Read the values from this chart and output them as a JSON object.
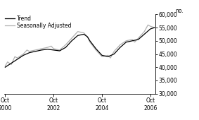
{
  "title": "",
  "ylabel": "no.",
  "ylim": [
    30000,
    60000
  ],
  "yticks": [
    30000,
    35000,
    40000,
    45000,
    50000,
    55000,
    60000
  ],
  "xlim_start": 2000.7,
  "xlim_end": 2006.95,
  "xtick_positions": [
    2000.75,
    2002.75,
    2004.75,
    2006.75
  ],
  "xtick_labels_top": [
    "Oct",
    "Oct",
    "Oct",
    "Oct"
  ],
  "xtick_labels_bot": [
    "2000",
    "2002",
    "2004",
    "2006"
  ],
  "legend_entries": [
    "Trend",
    "Seasonally Adjusted"
  ],
  "trend_color": "#000000",
  "seasonal_color": "#b0b0b0",
  "trend_linewidth": 0.9,
  "seasonal_linewidth": 0.9,
  "background_color": "#ffffff",
  "trend_data": [
    [
      2000.75,
      40000
    ],
    [
      2001.0,
      41500
    ],
    [
      2001.25,
      43000
    ],
    [
      2001.5,
      44500
    ],
    [
      2001.75,
      45500
    ],
    [
      2002.0,
      46000
    ],
    [
      2002.25,
      46500
    ],
    [
      2002.5,
      46800
    ],
    [
      2002.75,
      46500
    ],
    [
      2003.0,
      46200
    ],
    [
      2003.25,
      47500
    ],
    [
      2003.5,
      50000
    ],
    [
      2003.75,
      52000
    ],
    [
      2004.0,
      52500
    ],
    [
      2004.15,
      51500
    ],
    [
      2004.25,
      50000
    ],
    [
      2004.5,
      47000
    ],
    [
      2004.75,
      44500
    ],
    [
      2005.0,
      44000
    ],
    [
      2005.25,
      45000
    ],
    [
      2005.5,
      47500
    ],
    [
      2005.75,
      49500
    ],
    [
      2006.0,
      50000
    ],
    [
      2006.25,
      50500
    ],
    [
      2006.5,
      52500
    ],
    [
      2006.75,
      54500
    ],
    [
      2006.92,
      55000
    ]
  ],
  "seasonal_data": [
    [
      2000.75,
      40500
    ],
    [
      2000.85,
      42000
    ],
    [
      2001.0,
      41000
    ],
    [
      2001.15,
      44000
    ],
    [
      2001.25,
      43500
    ],
    [
      2001.5,
      45000
    ],
    [
      2001.65,
      46500
    ],
    [
      2001.75,
      46000
    ],
    [
      2002.0,
      46500
    ],
    [
      2002.25,
      47000
    ],
    [
      2002.5,
      47500
    ],
    [
      2002.65,
      48000
    ],
    [
      2002.75,
      47000
    ],
    [
      2003.0,
      46500
    ],
    [
      2003.25,
      48500
    ],
    [
      2003.5,
      51000
    ],
    [
      2003.75,
      53500
    ],
    [
      2004.0,
      53000
    ],
    [
      2004.15,
      51500
    ],
    [
      2004.25,
      49500
    ],
    [
      2004.5,
      46500
    ],
    [
      2004.75,
      44000
    ],
    [
      2005.0,
      44500
    ],
    [
      2005.1,
      43500
    ],
    [
      2005.25,
      46000
    ],
    [
      2005.5,
      48500
    ],
    [
      2005.75,
      50000
    ],
    [
      2006.0,
      50500
    ],
    [
      2006.1,
      49500
    ],
    [
      2006.25,
      51000
    ],
    [
      2006.5,
      53500
    ],
    [
      2006.65,
      56000
    ],
    [
      2006.75,
      55500
    ],
    [
      2006.92,
      55000
    ]
  ]
}
